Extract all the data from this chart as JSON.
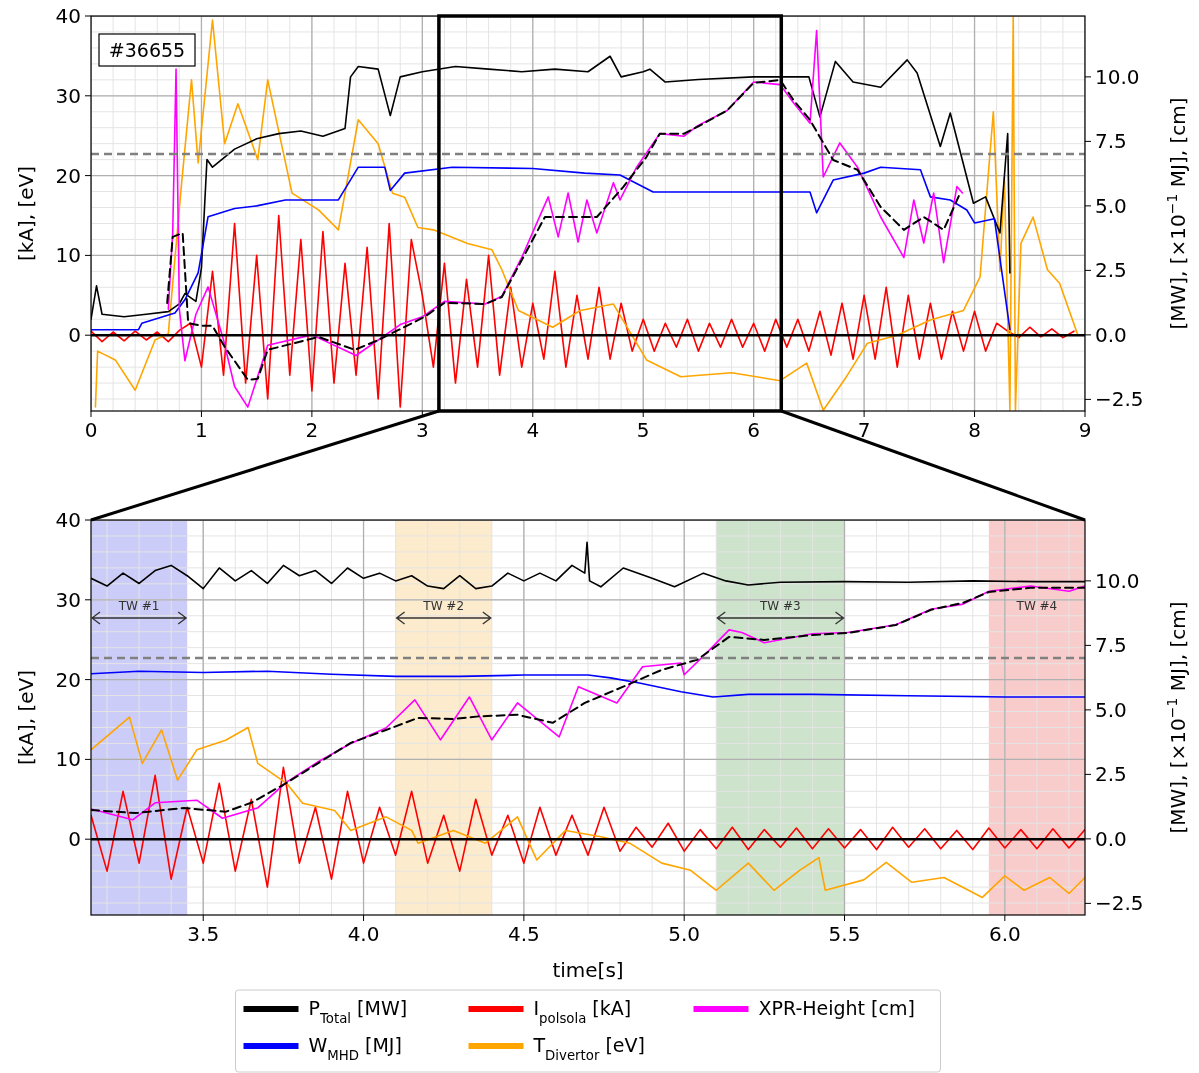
{
  "chart_data": [
    {
      "type": "line",
      "ylabel": "[kA], [eV]",
      "y2label": "[MW], [×10$^{−1}$ MJ], [cm]",
      "xlim": [
        0,
        9
      ],
      "xticks": [
        0,
        1,
        2,
        3,
        4,
        5,
        6,
        7,
        8,
        9
      ],
      "ylim": [
        -9.5,
        40
      ],
      "yticks": [
        0,
        10,
        20,
        30,
        40
      ],
      "y2lim": [
        -2.95,
        12.36
      ],
      "y2ticks": [
        {
          "value": -2.5,
          "label": "−2.5"
        },
        {
          "value": 0,
          "label": "0.0"
        },
        {
          "value": 2.5,
          "label": "2.5"
        },
        {
          "value": 5,
          "label": "5.0"
        },
        {
          "value": 7.5,
          "label": "7.5"
        },
        {
          "value": 10,
          "label": "10.0"
        }
      ],
      "grid": true,
      "annotations": [
        "#36655"
      ],
      "ref_lines": [
        {
          "axis": "y",
          "value": 22.7,
          "color": "#808080",
          "line_style": "dashed"
        },
        {
          "axis": "y",
          "value": 0,
          "color": "#000000",
          "line_style": "solid"
        }
      ],
      "series": [
        {
          "color": "#ff0000",
          "x": [
            0,
            0.1,
            0.2,
            0.3,
            0.4,
            0.5,
            0.6,
            0.7,
            0.8,
            0.9,
            1.0,
            1.1,
            1.2,
            1.3,
            1.4,
            1.5,
            1.6,
            1.7,
            1.8,
            1.9,
            2.0,
            2.1,
            2.2,
            2.3,
            2.4,
            2.5,
            2.6,
            2.7,
            2.8,
            2.9,
            3.0,
            3.1,
            3.2,
            3.3,
            3.4,
            3.5,
            3.6,
            3.7,
            3.8,
            3.9,
            4.0,
            4.1,
            4.2,
            4.3,
            4.4,
            4.5,
            4.6,
            4.7,
            4.8,
            4.9,
            5.0,
            5.1,
            5.2,
            5.3,
            5.4,
            5.5,
            5.6,
            5.7,
            5.8,
            5.9,
            6.0,
            6.1,
            6.2,
            6.3,
            6.4,
            6.5,
            6.6,
            6.7,
            6.8,
            6.9,
            7.0,
            7.1,
            7.2,
            7.3,
            7.4,
            7.5,
            7.6,
            7.7,
            7.8,
            7.9,
            8.0,
            8.1,
            8.2,
            8.3,
            8.4,
            8.5,
            8.6,
            8.7,
            8.8,
            8.9
          ],
          "values": [
            0.5,
            -0.8,
            0.4,
            -0.7,
            0.5,
            -0.6,
            0.4,
            -0.8,
            0.6,
            1.5,
            -4,
            8,
            -5,
            14,
            -6,
            10,
            -8,
            15,
            -5,
            12,
            -7,
            13,
            -6,
            9,
            -5,
            11,
            -8,
            14,
            -9,
            12,
            5,
            -4,
            9,
            -6,
            7,
            -4,
            10,
            -5,
            6,
            -4,
            4,
            -3,
            8,
            -4,
            5,
            -3,
            6,
            -3,
            4,
            -2,
            2,
            -2,
            1.5,
            -1.5,
            2,
            -2,
            1.5,
            -1.5,
            2,
            -1.5,
            1.5,
            -2,
            2,
            -1.5,
            2,
            -2,
            3,
            -2.5,
            4,
            -3,
            5,
            -3,
            6,
            -4,
            5,
            -3,
            4,
            -3,
            3,
            -2,
            3,
            -2,
            1.5,
            0.5,
            -0.3,
            1,
            -0.2,
            0.8,
            -0.3,
            0.5
          ]
        },
        {
          "color": "#ffa500",
          "x": [
            0.04,
            0.06,
            0.22,
            0.4,
            0.58,
            0.7,
            0.82,
            0.91,
            0.97,
            1.1,
            1.21,
            1.33,
            1.51,
            1.6,
            1.82,
            2.06,
            2.24,
            2.42,
            2.6,
            2.73,
            2.84,
            2.96,
            3.1,
            3.41,
            3.63,
            3.72,
            3.87,
            4.18,
            4.43,
            4.73,
            5.03,
            5.34,
            5.8,
            6.24,
            6.48,
            6.63,
            6.84,
            7.03,
            7.3,
            7.6,
            7.9,
            8.05,
            8.17,
            8.23,
            8.27,
            8.32,
            8.35,
            8.37,
            8.42,
            8.53,
            8.66,
            8.77,
            8.93
          ],
          "values": [
            -9.0,
            -2.0,
            -3.1,
            -6.9,
            -0.6,
            0.2,
            19,
            32,
            21.6,
            39.5,
            24,
            29,
            22,
            32,
            17.8,
            15.7,
            13.2,
            27,
            24,
            17.8,
            17.3,
            13.5,
            13.2,
            11.5,
            10.7,
            8.2,
            3.1,
            1.0,
            3.1,
            3.9,
            -3.1,
            -5.2,
            -4.7,
            -5.7,
            -3.5,
            -9.4,
            -5.2,
            -1.0,
            0.0,
            1.9,
            3.1,
            7.3,
            28,
            8,
            19.8,
            -9.4,
            39.9,
            -9.4,
            11.5,
            14.8,
            8.2,
            6.5,
            0.2
          ]
        },
        {
          "color": "#000000",
          "axis": "y2",
          "x": [
            0,
            0.05,
            0.1,
            0.3,
            0.5,
            0.7,
            0.8,
            0.85,
            0.95,
            1.0,
            1.05,
            1.1,
            1.3,
            1.5,
            1.7,
            1.9,
            2.1,
            2.3,
            2.35,
            2.42,
            2.6,
            2.71,
            2.8,
            3.0,
            3.3,
            3.6,
            3.9,
            4.2,
            4.5,
            4.7,
            4.8,
            5.0,
            5.06,
            5.2,
            5.5,
            6.0,
            6.3,
            6.5,
            6.6,
            6.74,
            6.9,
            7.15,
            7.39,
            7.48,
            7.69,
            7.78,
            7.99,
            8.1,
            8.23,
            8.3,
            8.32
          ],
          "values": [
            0.6,
            1.9,
            0.8,
            0.7,
            0.8,
            0.9,
            1.2,
            1.6,
            1.3,
            2.6,
            6.8,
            6.5,
            7.2,
            7.6,
            7.8,
            7.9,
            7.7,
            8.0,
            10.0,
            10.4,
            10.3,
            8.5,
            10.0,
            10.2,
            10.4,
            10.3,
            10.2,
            10.3,
            10.2,
            10.8,
            10.0,
            10.2,
            10.3,
            9.8,
            9.9,
            10.0,
            10.0,
            10.0,
            8.45,
            10.6,
            9.8,
            9.6,
            10.66,
            10.15,
            7.3,
            8.6,
            5.1,
            5.35,
            3.95,
            7.8,
            2.4
          ]
        },
        {
          "color": "#0000ff",
          "axis": "y2",
          "x": [
            0,
            0.43,
            0.46,
            0.76,
            0.85,
            0.97,
            1.06,
            1.3,
            1.5,
            1.76,
            2.24,
            2.42,
            2.66,
            2.71,
            2.84,
            3.27,
            4.0,
            4.47,
            4.79,
            5.09,
            6.24,
            6.51,
            6.57,
            6.72,
            7.0,
            7.15,
            7.51,
            7.6,
            7.78,
            7.93,
            8.0,
            8.18,
            8.32
          ],
          "values": [
            0.2,
            0.2,
            0.45,
            0.85,
            1.36,
            2.4,
            4.58,
            4.9,
            5.0,
            5.23,
            5.23,
            6.5,
            6.5,
            5.6,
            6.27,
            6.5,
            6.45,
            6.27,
            6.2,
            5.54,
            5.54,
            5.54,
            4.73,
            6.0,
            6.27,
            6.5,
            6.4,
            5.35,
            5.23,
            4.84,
            4.34,
            4.5,
            0.2
          ]
        },
        {
          "color": "#ff00ff",
          "axis": "y2",
          "x": [
            0.7,
            0.74,
            0.77,
            0.8,
            0.85,
            0.95,
            1.06,
            1.2,
            1.3,
            1.42,
            1.6,
            2.0,
            2.4,
            2.8,
            3.0,
            3.2,
            3.57,
            3.72,
            3.9,
            4.14,
            4.23,
            4.32,
            4.41,
            4.49,
            4.58,
            4.73,
            4.79,
            4.94,
            5.15,
            5.37,
            5.49,
            5.76,
            6.0,
            6.24,
            6.36,
            6.51,
            6.57,
            6.63,
            6.78,
            6.94,
            7.15,
            7.36,
            7.45,
            7.54,
            7.63,
            7.72,
            7.84,
            7.89
          ],
          "values": [
            1.0,
            4.0,
            10.3,
            1.0,
            -1.0,
            0.8,
            1.86,
            -0.2,
            -2.0,
            -2.8,
            -0.4,
            0.0,
            -0.8,
            0.4,
            0.7,
            1.3,
            1.2,
            1.5,
            3.0,
            5.35,
            3.8,
            5.5,
            3.6,
            5.23,
            3.95,
            5.9,
            5.23,
            6.5,
            7.8,
            7.7,
            8.1,
            8.7,
            9.8,
            9.7,
            9.0,
            8.2,
            11.8,
            6.12,
            7.44,
            6.5,
            4.57,
            3.0,
            5.23,
            3.56,
            5.5,
            2.8,
            5.75,
            5.5
          ]
        },
        {
          "color": "#000000",
          "axis": "y2",
          "line_style": "dashed",
          "x": [
            0.69,
            0.74,
            0.83,
            0.88,
            1.0,
            1.1,
            1.21,
            1.42,
            1.51,
            1.6,
            2.06,
            2.39,
            2.6,
            2.84,
            3.02,
            3.2,
            3.57,
            3.72,
            4.11,
            4.47,
            4.58,
            4.82,
            5.03,
            5.15,
            5.37,
            5.49,
            5.76,
            6.0,
            6.24,
            6.36,
            6.51,
            6.72,
            6.94,
            7.15,
            7.36,
            7.54,
            7.72,
            7.87
          ],
          "values": [
            1.24,
            3.8,
            3.95,
            0.46,
            0.35,
            0.35,
            -0.46,
            -1.74,
            -1.7,
            -0.58,
            -0.08,
            -0.58,
            -0.2,
            0.31,
            0.7,
            1.24,
            1.2,
            1.47,
            4.57,
            4.57,
            4.57,
            5.74,
            6.9,
            7.8,
            7.8,
            8.06,
            8.7,
            9.77,
            9.88,
            9.1,
            8.33,
            6.78,
            6.4,
            4.96,
            4.07,
            4.57,
            4.07,
            5.5
          ]
        }
      ]
    },
    {
      "type": "line",
      "xlabel": "time[s]",
      "ylabel": "[kA], [eV]",
      "y2label": "[MW], [×10$^{−1}$ MJ], [cm]",
      "xlim": [
        3.15,
        6.25
      ],
      "xticks": [
        {
          "value": 3.5,
          "label": "3.5"
        },
        {
          "value": 4,
          "label": "4.0"
        },
        {
          "value": 4.5,
          "label": "4.5"
        },
        {
          "value": 5,
          "label": "5.0"
        },
        {
          "value": 5.5,
          "label": "5.5"
        },
        {
          "value": 6,
          "label": "6.0"
        }
      ],
      "ylim": [
        -9.5,
        40
      ],
      "yticks": [
        0,
        10,
        20,
        30,
        40
      ],
      "y2lim": [
        -2.95,
        12.36
      ],
      "y2ticks": [
        {
          "value": -2.5,
          "label": "−2.5"
        },
        {
          "value": 0,
          "label": "0.0"
        },
        {
          "value": 2.5,
          "label": "2.5"
        },
        {
          "value": 5,
          "label": "5.0"
        },
        {
          "value": 7.5,
          "label": "7.5"
        },
        {
          "value": 10,
          "label": "10.0"
        }
      ],
      "grid": true,
      "legend": "bottom",
      "bands": [
        {
          "axis": "x",
          "from": 3.15,
          "to": 3.45,
          "label": "TW #1",
          "color": "#ccccf8"
        },
        {
          "axis": "x",
          "from": 4.1,
          "to": 4.4,
          "label": "TW #2",
          "color": "#fcebcc"
        },
        {
          "axis": "x",
          "from": 5.1,
          "to": 5.5,
          "label": "TW #3",
          "color": "#cde3cc"
        },
        {
          "axis": "x",
          "from": 5.95,
          "to": 6.25,
          "label": "TW #4",
          "color": "#f9cccc"
        }
      ],
      "ref_lines": [
        {
          "axis": "y",
          "value": 22.7,
          "color": "#808080",
          "line_style": "dashed"
        },
        {
          "axis": "y",
          "value": 0,
          "color": "#000000",
          "line_style": "solid"
        }
      ],
      "series": [
        {
          "name": "P$_{Total}$ [MW]",
          "color": "#000000",
          "axis": "y2",
          "x": [
            3.15,
            3.2,
            3.25,
            3.3,
            3.35,
            3.4,
            3.45,
            3.5,
            3.55,
            3.6,
            3.65,
            3.7,
            3.75,
            3.8,
            3.85,
            3.9,
            3.95,
            4.0,
            4.05,
            4.1,
            4.15,
            4.2,
            4.25,
            4.3,
            4.35,
            4.4,
            4.45,
            4.5,
            4.55,
            4.6,
            4.65,
            4.69,
            4.697,
            4.705,
            4.74,
            4.81,
            4.9,
            4.97,
            5.06,
            5.13,
            5.2,
            5.3,
            5.5,
            5.7,
            5.9,
            6.1,
            6.25
          ],
          "values": [
            10.1,
            9.8,
            10.3,
            9.9,
            10.4,
            10.6,
            10.2,
            9.7,
            10.5,
            10.0,
            10.4,
            9.9,
            10.6,
            10.2,
            10.4,
            9.9,
            10.5,
            10.1,
            10.3,
            10.0,
            10.2,
            9.8,
            9.7,
            10.2,
            9.7,
            9.8,
            10.3,
            10.0,
            10.3,
            10.0,
            10.6,
            10.3,
            11.5,
            10.0,
            9.77,
            10.5,
            10.1,
            9.77,
            10.3,
            10.0,
            9.84,
            9.95,
            9.97,
            9.95,
            10.0,
            9.97,
            9.97
          ]
        },
        {
          "name": "W$_{MHD}$ [MJ]",
          "color": "#0000ff",
          "axis": "y2",
          "x": [
            3.15,
            3.3,
            3.5,
            3.7,
            3.9,
            4.1,
            4.3,
            4.5,
            4.7,
            4.77,
            4.86,
            4.99,
            5.09,
            5.2,
            5.4,
            5.7,
            6.0,
            6.25
          ],
          "values": [
            6.4,
            6.5,
            6.45,
            6.5,
            6.38,
            6.3,
            6.3,
            6.35,
            6.35,
            6.24,
            6.04,
            5.7,
            5.5,
            5.6,
            5.6,
            5.55,
            5.5,
            5.5
          ]
        },
        {
          "name": "I$_{polsola}$ [kA]",
          "color": "#ff0000",
          "x": [
            3.15,
            3.2,
            3.25,
            3.3,
            3.35,
            3.4,
            3.45,
            3.5,
            3.55,
            3.6,
            3.65,
            3.7,
            3.75,
            3.8,
            3.85,
            3.9,
            3.95,
            4.0,
            4.05,
            4.1,
            4.15,
            4.2,
            4.25,
            4.3,
            4.35,
            4.4,
            4.45,
            4.5,
            4.55,
            4.6,
            4.65,
            4.7,
            4.75,
            4.8,
            4.85,
            4.9,
            4.95,
            5.0,
            5.05,
            5.1,
            5.15,
            5.2,
            5.25,
            5.3,
            5.35,
            5.4,
            5.45,
            5.5,
            5.55,
            5.6,
            5.65,
            5.7,
            5.75,
            5.8,
            5.85,
            5.9,
            5.95,
            6.0,
            6.05,
            6.1,
            6.15,
            6.2,
            6.25
          ],
          "values": [
            3,
            -4,
            6,
            -3,
            8,
            -5,
            4,
            -3,
            7,
            -4,
            5,
            -6,
            9,
            -3,
            4,
            -5,
            6,
            -3,
            4,
            -2,
            6,
            -3,
            3,
            -4,
            5,
            -2,
            3,
            -3,
            4,
            -2,
            3,
            -2,
            4,
            -1.5,
            1.5,
            -1,
            2,
            -1.5,
            1.2,
            -1.2,
            1.5,
            -1.3,
            1.2,
            -1,
            1.4,
            -1.2,
            1.3,
            -1.1,
            1.2,
            -1.3,
            1.5,
            -1,
            1.3,
            -1.2,
            1.1,
            -1.3,
            1.4,
            -1.1,
            1.2,
            -1.2,
            1.3,
            -1.1,
            1.2
          ]
        },
        {
          "name": "T$_{Divertor}$ [eV]",
          "color": "#ffa500",
          "x": [
            3.15,
            3.27,
            3.31,
            3.37,
            3.42,
            3.48,
            3.57,
            3.64,
            3.67,
            3.76,
            3.81,
            3.91,
            3.96,
            4.07,
            4.15,
            4.17,
            4.28,
            4.38,
            4.48,
            4.54,
            4.63,
            4.74,
            4.83,
            4.93,
            5.02,
            5.1,
            5.2,
            5.28,
            5.36,
            5.42,
            5.44,
            5.56,
            5.63,
            5.71,
            5.81,
            5.93,
            6.0,
            6.06,
            6.14,
            6.2,
            6.25
          ],
          "values": [
            11.2,
            15.3,
            9.5,
            13.7,
            7.4,
            11.2,
            12.4,
            14.0,
            9.5,
            7.0,
            4.5,
            3.6,
            1.1,
            2.8,
            1.1,
            -0.5,
            1.1,
            -0.5,
            2.8,
            -2.6,
            1.1,
            0.3,
            -0.5,
            -3.0,
            -3.9,
            -6.4,
            -3.0,
            -6.4,
            -3.9,
            -2.3,
            -6.4,
            -5.1,
            -2.9,
            -5.4,
            -4.8,
            -7.3,
            -4.6,
            -6.4,
            -4.8,
            -6.8,
            -4.8
          ]
        },
        {
          "name": "XPR-Height [cm]",
          "color": "#ff00ff",
          "axis": "y2",
          "x": [
            3.15,
            3.28,
            3.35,
            3.48,
            3.56,
            3.67,
            3.76,
            3.86,
            3.96,
            4.07,
            4.16,
            4.24,
            4.33,
            4.4,
            4.48,
            4.61,
            4.67,
            4.79,
            4.87,
            4.99,
            5.0,
            5.07,
            5.14,
            5.18,
            5.25,
            5.4,
            5.51,
            5.66,
            5.77,
            5.87,
            5.95,
            6.08,
            6.2,
            6.25
          ],
          "values": [
            1.16,
            0.74,
            1.4,
            1.5,
            0.8,
            1.2,
            2.2,
            3.0,
            3.7,
            4.3,
            5.39,
            3.84,
            5.5,
            3.84,
            5.27,
            3.95,
            5.9,
            5.27,
            6.67,
            6.82,
            6.36,
            7.21,
            8.1,
            8.0,
            7.6,
            7.95,
            8.0,
            8.3,
            8.9,
            9.1,
            9.6,
            9.8,
            9.6,
            9.8
          ]
        },
        {
          "color": "#000000",
          "axis": "y2",
          "line_style": "dashed",
          "x": [
            3.15,
            3.29,
            3.44,
            3.57,
            3.65,
            3.76,
            3.86,
            3.96,
            4.07,
            4.17,
            4.28,
            4.36,
            4.48,
            4.59,
            4.69,
            4.81,
            4.93,
            5.04,
            5.14,
            5.25,
            5.4,
            5.51,
            5.66,
            5.77,
            5.87,
            5.95,
            6.08,
            6.25
          ],
          "values": [
            1.12,
            1.0,
            1.2,
            1.05,
            1.4,
            2.17,
            2.95,
            3.72,
            4.22,
            4.69,
            4.65,
            4.75,
            4.81,
            4.5,
            5.27,
            5.9,
            6.55,
            6.94,
            7.83,
            7.71,
            7.9,
            7.98,
            8.29,
            8.88,
            9.15,
            9.57,
            9.73,
            9.73
          ]
        }
      ]
    }
  ]
}
